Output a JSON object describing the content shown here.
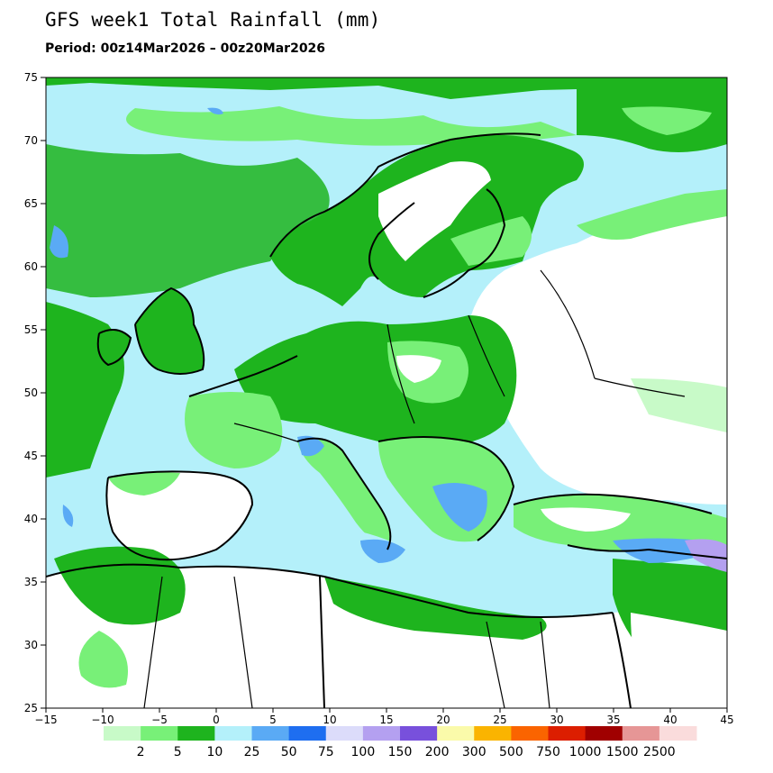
{
  "title": "GFS week1 Total Rainfall (mm)",
  "period": "Period: 00z14Mar2026 – 00z20Mar2026",
  "map": {
    "lon_range": [
      -15,
      45
    ],
    "lat_range": [
      25,
      75
    ],
    "lon_ticks": [
      "−15",
      "−10",
      "−5",
      "0",
      "5",
      "10",
      "15",
      "20",
      "25",
      "30",
      "35",
      "40",
      "45"
    ],
    "lat_ticks": [
      "75",
      "70",
      "65",
      "60",
      "55",
      "50",
      "45",
      "40",
      "35",
      "30",
      "25"
    ],
    "ocean_color": "#b4f0fa",
    "land_color": "#ffffff"
  },
  "colorbar": {
    "labels": [
      "2",
      "5",
      "10",
      "25",
      "50",
      "75",
      "100",
      "150",
      "200",
      "300",
      "500",
      "750",
      "1000",
      "1500",
      "2500"
    ],
    "colors": [
      "#c8fac8",
      "#78f078",
      "#1eb41e",
      "#b4f0fa",
      "#5aaaf5",
      "#1e6ef0",
      "#dcdcfa",
      "#b4a0f0",
      "#7850dc",
      "#fafaaa",
      "#fab400",
      "#fa6400",
      "#dc1e00",
      "#a00000",
      "#e69696",
      "#fadcdc"
    ]
  }
}
